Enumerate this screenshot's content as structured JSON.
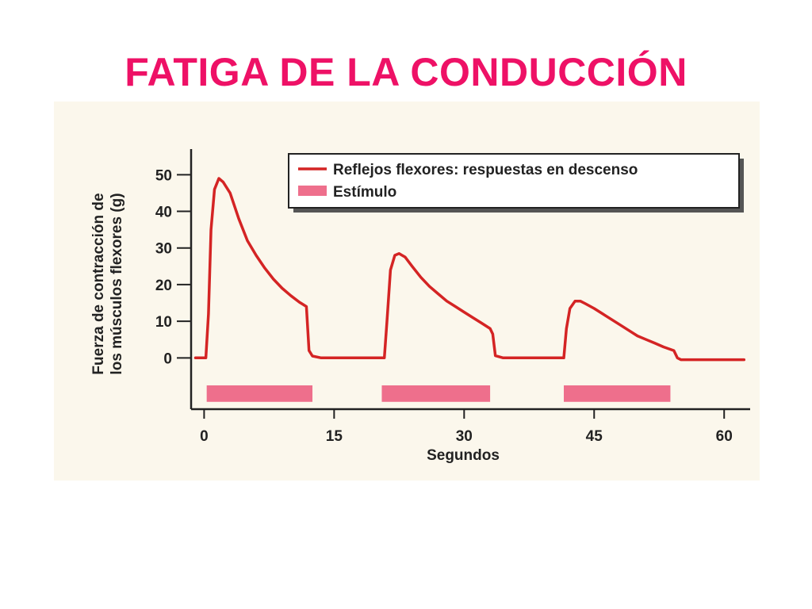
{
  "slide": {
    "title": "FATIGA DE LA CONDUCCIÓN",
    "title_color": "#ee1166"
  },
  "colors": {
    "panel_background": "#fbf7ec",
    "response_line": "#d42424",
    "stimulus_bar": "#ee6f8c",
    "axis": "#222222"
  },
  "chart_data": {
    "type": "line",
    "xlabel": "Segundos",
    "ylabel_lines": [
      "Fuerza de contracción de",
      "los músculos flexores (g)"
    ],
    "xlim": [
      -1.5,
      63
    ],
    "ylim": [
      -14,
      57
    ],
    "xticks": [
      0,
      15,
      30,
      45,
      60
    ],
    "yticks": [
      0,
      10,
      20,
      30,
      40,
      50
    ],
    "grid": false,
    "legend_position": "top-right",
    "legend": {
      "line_label": "Reflejos flexores: respuestas en descenso",
      "bar_label": "Estímulo"
    },
    "series": [
      {
        "name": "Reflejos flexores: respuestas en descenso",
        "x": [
          -1,
          0.2,
          0.5,
          0.8,
          1.2,
          1.7,
          2.2,
          3,
          4,
          5,
          6,
          7,
          8,
          9,
          10,
          11,
          11.8,
          12.1,
          12.5,
          13.5,
          15,
          18,
          20.8,
          21.1,
          21.5,
          22,
          22.5,
          23.2,
          24,
          25,
          26,
          27,
          28,
          29,
          30,
          31,
          32,
          33,
          33.3,
          33.6,
          34.5,
          36,
          40,
          41.5,
          41.8,
          42.2,
          42.8,
          43.4,
          44,
          45,
          46,
          47,
          48,
          49,
          50,
          51,
          52,
          53,
          54.2,
          54.6,
          55,
          56,
          58,
          60,
          61,
          62.3
        ],
        "values": [
          0,
          0,
          12,
          35,
          46,
          49,
          48,
          45,
          38,
          32,
          28,
          24.5,
          21.5,
          19,
          17,
          15.2,
          14,
          2,
          0.5,
          0,
          0,
          0,
          0,
          10,
          24,
          28,
          28.5,
          27.5,
          25,
          22,
          19.5,
          17.5,
          15.5,
          14,
          12.5,
          11,
          9.5,
          8,
          6.5,
          0.6,
          0,
          0,
          0,
          0,
          8,
          13.5,
          15.5,
          15.5,
          14.8,
          13.5,
          12,
          10.5,
          9,
          7.5,
          6,
          5,
          4,
          3,
          2,
          0,
          -0.5,
          -0.5,
          -0.5,
          -0.5,
          -0.5,
          -0.5
        ]
      }
    ],
    "stimulus_intervals": [
      [
        0.3,
        12.5
      ],
      [
        20.5,
        33
      ],
      [
        41.5,
        53.8
      ]
    ]
  }
}
